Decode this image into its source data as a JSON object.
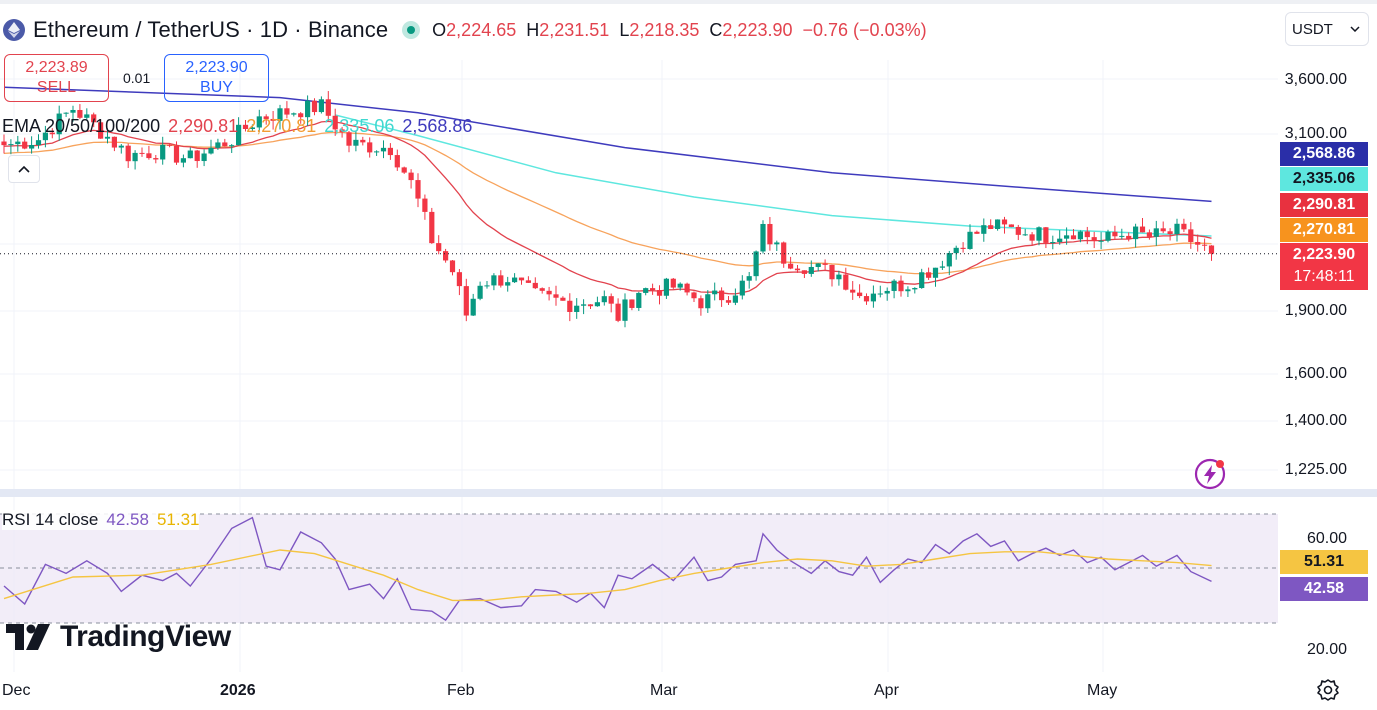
{
  "header": {
    "title": "Ethereum / TetherUS · 1D · Binance",
    "ohlc": [
      {
        "key": "O",
        "value": "2,224.65"
      },
      {
        "key": "H",
        "value": "2,231.51"
      },
      {
        "key": "L",
        "value": "2,218.35"
      },
      {
        "key": "C",
        "value": "2,223.90"
      }
    ],
    "change": "−0.76 (−0.03%)",
    "unit": "USDT"
  },
  "trade": {
    "sell_price": "2,223.89",
    "sell_label": "SELL",
    "spread": "0.01",
    "buy_price": "2,223.90",
    "buy_label": "BUY"
  },
  "ema_legend": {
    "name": "EMA 20/50/100/200",
    "values": [
      "2,290.81",
      "2,270.81",
      "2,335.06",
      "2,568.86"
    ]
  },
  "rsi_legend": {
    "name": "RSI 14 close",
    "values": [
      "42.58",
      "51.31"
    ]
  },
  "price_labels": {
    "ema200": "2,568.86",
    "ema100": "2,335.06",
    "ema20": "2,290.81",
    "ema50": "2,270.81",
    "last": "2,223.90",
    "countdown": "17:48:11",
    "rsi_signal": "51.31",
    "rsi": "42.58"
  },
  "y_ticks": [
    "3,600.00",
    "3,100.00",
    "1,900.00",
    "1,600.00",
    "1,400.00",
    "1,225.00"
  ],
  "rsi_ticks": [
    "60.00",
    "20.00"
  ],
  "x_ticks": [
    "Dec",
    "2026",
    "Feb",
    "Mar",
    "Apr",
    "May"
  ],
  "logo_text": "TradingView",
  "colors": {
    "up": "#089981",
    "down": "#f23645",
    "ema20": "#e2434e",
    "ema50": "#f7a35c",
    "ema100": "#5ee7df",
    "ema200": "#3f3bbd",
    "rsi": "#7e57c2",
    "rsi_ma": "#f5c542"
  },
  "icons": [
    "ethereum-icon",
    "chevron-down-icon",
    "chevron-up-icon",
    "tradingview-logo-icon",
    "settings-icon",
    "lightning-icon"
  ],
  "chart_data": [
    {
      "type": "candlestick",
      "title": "Ethereum / TetherUS · 1D · Binance",
      "x_ticks": [
        "Dec",
        "2026",
        "Feb",
        "Mar",
        "Apr",
        "May"
      ],
      "y_scale": "log",
      "ylim": [
        1150,
        3900
      ],
      "grid": true,
      "legend": "top-left",
      "last_close": 2223.9,
      "anchors": [
        {
          "day": 0,
          "close": 3000
        },
        {
          "day": 5,
          "close": 3050
        },
        {
          "day": 10,
          "close": 3320
        },
        {
          "day": 14,
          "close": 3120
        },
        {
          "day": 18,
          "close": 2920
        },
        {
          "day": 22,
          "close": 2950
        },
        {
          "day": 27,
          "close": 2890
        },
        {
          "day": 33,
          "close": 3050
        },
        {
          "day": 37,
          "close": 3240
        },
        {
          "day": 42,
          "close": 3300
        },
        {
          "day": 46,
          "close": 3340
        },
        {
          "day": 50,
          "close": 3010
        },
        {
          "day": 56,
          "close": 2980
        },
        {
          "day": 59,
          "close": 2700
        },
        {
          "day": 62,
          "close": 2310
        },
        {
          "day": 65,
          "close": 2120
        },
        {
          "day": 67,
          "close": 1880
        },
        {
          "day": 69,
          "close": 2060
        },
        {
          "day": 73,
          "close": 2080
        },
        {
          "day": 77,
          "close": 1980
        },
        {
          "day": 82,
          "close": 1940
        },
        {
          "day": 87,
          "close": 1960
        },
        {
          "day": 89,
          "close": 1870
        },
        {
          "day": 92,
          "close": 2010
        },
        {
          "day": 97,
          "close": 2030
        },
        {
          "day": 101,
          "close": 1950
        },
        {
          "day": 105,
          "close": 1990
        },
        {
          "day": 108,
          "close": 2070
        },
        {
          "day": 110,
          "close": 2370
        },
        {
          "day": 113,
          "close": 2200
        },
        {
          "day": 117,
          "close": 2140
        },
        {
          "day": 121,
          "close": 2100
        },
        {
          "day": 124,
          "close": 1980
        },
        {
          "day": 127,
          "close": 2020
        },
        {
          "day": 131,
          "close": 2050
        },
        {
          "day": 135,
          "close": 2150
        },
        {
          "day": 139,
          "close": 2310
        },
        {
          "day": 143,
          "close": 2400
        },
        {
          "day": 147,
          "close": 2370
        },
        {
          "day": 151,
          "close": 2340
        },
        {
          "day": 155,
          "close": 2370
        },
        {
          "day": 159,
          "close": 2300
        },
        {
          "day": 163,
          "close": 2360
        },
        {
          "day": 166,
          "close": 2330
        },
        {
          "day": 170,
          "close": 2360
        },
        {
          "day": 173,
          "close": 2280
        },
        {
          "day": 175,
          "close": 2223.9
        }
      ],
      "ema_last": {
        "ema20": 2290.81,
        "ema50": 2270.81,
        "ema100": 2335.06,
        "ema200": 2568.86
      },
      "ema_curves": {
        "ema200": [
          [
            0,
            3520
          ],
          [
            40,
            3420
          ],
          [
            60,
            3280
          ],
          [
            90,
            2980
          ],
          [
            120,
            2780
          ],
          [
            150,
            2660
          ],
          [
            175,
            2568.86
          ]
        ],
        "ema100": [
          [
            48,
            3260
          ],
          [
            60,
            3080
          ],
          [
            80,
            2780
          ],
          [
            100,
            2600
          ],
          [
            120,
            2470
          ],
          [
            140,
            2400
          ],
          [
            175,
            2335.06
          ]
        ]
      }
    },
    {
      "type": "line",
      "title": "RSI 14 close",
      "ylim": [
        15,
        82
      ],
      "bands": [
        30,
        70
      ],
      "last": {
        "rsi": 42.58,
        "ma": 51.31
      },
      "rsi": [
        [
          0,
          40
        ],
        [
          3,
          30
        ],
        [
          6,
          52
        ],
        [
          9,
          47
        ],
        [
          12,
          54
        ],
        [
          15,
          47
        ],
        [
          17,
          37
        ],
        [
          20,
          46
        ],
        [
          23,
          43
        ],
        [
          25,
          47
        ],
        [
          27,
          40
        ],
        [
          30,
          55
        ],
        [
          33,
          72
        ],
        [
          36,
          78
        ],
        [
          38,
          51
        ],
        [
          40,
          49
        ],
        [
          43,
          70
        ],
        [
          46,
          64
        ],
        [
          48,
          55
        ],
        [
          50,
          38
        ],
        [
          53,
          41
        ],
        [
          55,
          33
        ],
        [
          57,
          44
        ],
        [
          59,
          27
        ],
        [
          62,
          26
        ],
        [
          64,
          21
        ],
        [
          66,
          32
        ],
        [
          69,
          33
        ],
        [
          72,
          28
        ],
        [
          75,
          29
        ],
        [
          77,
          38
        ],
        [
          80,
          37
        ],
        [
          83,
          31
        ],
        [
          85,
          36
        ],
        [
          87,
          28
        ],
        [
          89,
          46
        ],
        [
          91,
          44
        ],
        [
          94,
          52
        ],
        [
          97,
          43
        ],
        [
          100,
          56
        ],
        [
          102,
          43
        ],
        [
          104,
          45
        ],
        [
          106,
          52
        ],
        [
          109,
          54
        ],
        [
          110,
          69
        ],
        [
          112,
          60
        ],
        [
          114,
          54
        ],
        [
          117,
          47
        ],
        [
          119,
          54
        ],
        [
          121,
          48
        ],
        [
          123,
          46
        ],
        [
          125,
          56
        ],
        [
          127,
          42
        ],
        [
          129,
          49
        ],
        [
          131,
          55
        ],
        [
          133,
          53
        ],
        [
          135,
          63
        ],
        [
          137,
          58
        ],
        [
          139,
          65
        ],
        [
          141,
          69
        ],
        [
          143,
          62
        ],
        [
          145,
          65
        ],
        [
          147,
          54
        ],
        [
          149,
          58
        ],
        [
          151,
          61
        ],
        [
          153,
          57
        ],
        [
          155,
          60
        ],
        [
          157,
          53
        ],
        [
          159,
          56
        ],
        [
          161,
          49
        ],
        [
          163,
          53
        ],
        [
          165,
          57
        ],
        [
          167,
          51
        ],
        [
          170,
          57
        ],
        [
          172,
          48
        ],
        [
          175,
          42.58
        ]
      ],
      "ma": [
        [
          0,
          33
        ],
        [
          10,
          45
        ],
        [
          20,
          46
        ],
        [
          30,
          52
        ],
        [
          40,
          60
        ],
        [
          45,
          58
        ],
        [
          50,
          52
        ],
        [
          55,
          46
        ],
        [
          60,
          38
        ],
        [
          65,
          32
        ],
        [
          70,
          32
        ],
        [
          75,
          34
        ],
        [
          80,
          35
        ],
        [
          85,
          36
        ],
        [
          90,
          38
        ],
        [
          95,
          43
        ],
        [
          100,
          47
        ],
        [
          105,
          50
        ],
        [
          110,
          53
        ],
        [
          115,
          55
        ],
        [
          120,
          54
        ],
        [
          125,
          51
        ],
        [
          130,
          52
        ],
        [
          135,
          55
        ],
        [
          140,
          58
        ],
        [
          145,
          59
        ],
        [
          150,
          59
        ],
        [
          155,
          57
        ],
        [
          160,
          55
        ],
        [
          165,
          54
        ],
        [
          170,
          53
        ],
        [
          175,
          51.31
        ]
      ]
    }
  ]
}
